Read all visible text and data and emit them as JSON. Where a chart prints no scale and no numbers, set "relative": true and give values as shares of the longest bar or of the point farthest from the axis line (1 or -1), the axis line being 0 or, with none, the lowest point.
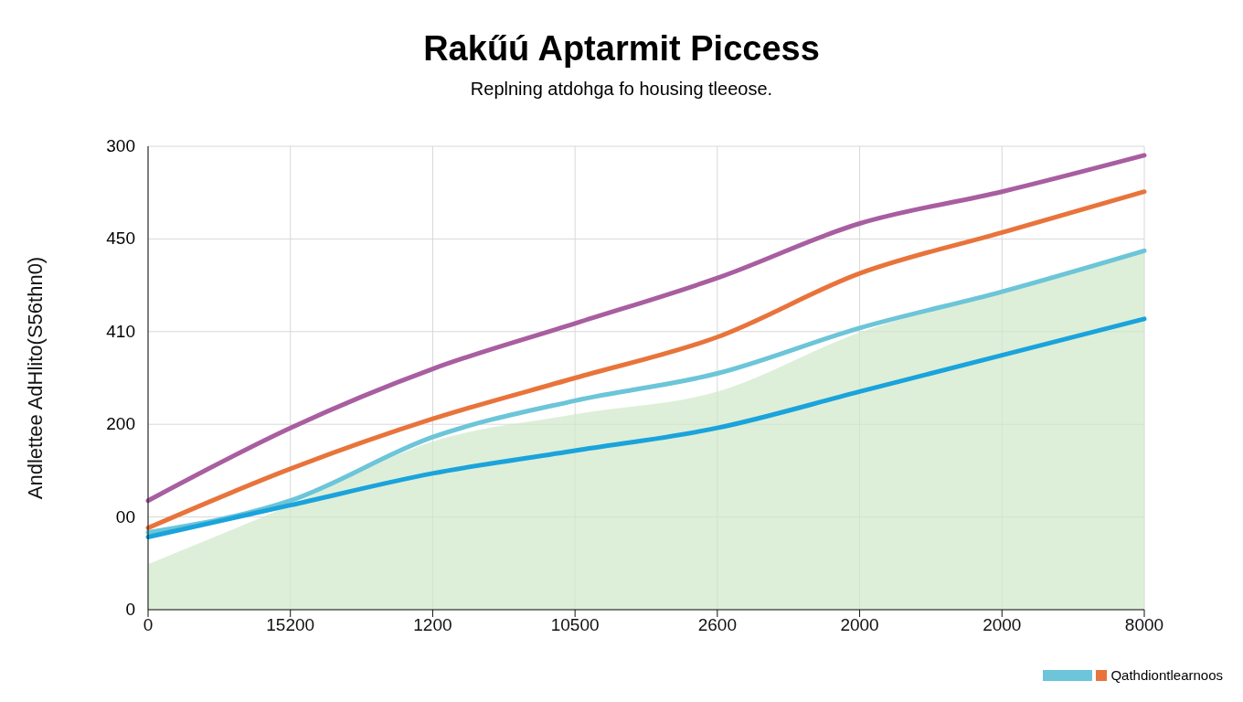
{
  "chart_data": {
    "type": "line",
    "title": "Rakűú Aptarmit Piccess",
    "subtitle": "Replning atdohga fo housing tleeose.",
    "ylabel": "Andlettee AdHlito(S56thn0)",
    "categories": [
      "0",
      "15200",
      "1200",
      "10500",
      "2600",
      "2000",
      "2000",
      "8000"
    ],
    "relative": true,
    "annotations": [
      "0",
      "00",
      "200",
      "410",
      "450",
      "300"
    ],
    "grid": true,
    "legend": "bottom right",
    "line_style": "solid",
    "series": [
      {
        "type": "area",
        "color": "#cfe8c8",
        "values": [
          0.1,
          0.23,
          0.37,
          0.43,
          0.48,
          0.61,
          0.7,
          0.79
        ]
      },
      {
        "color": "#a85ea0",
        "values": [
          0.24,
          0.4,
          0.53,
          0.63,
          0.73,
          0.85,
          0.92,
          1
        ]
      },
      {
        "color": "#e8743b",
        "values": [
          0.18,
          0.31,
          0.42,
          0.51,
          0.6,
          0.74,
          0.83,
          0.92
        ]
      },
      {
        "name": "Qathdiontlearnoos",
        "color": "#6cc5d8",
        "values": [
          0.17,
          0.24,
          0.38,
          0.46,
          0.52,
          0.62,
          0.7,
          0.79
        ]
      },
      {
        "color": "#1aa3dc",
        "values": [
          0.16,
          0.23,
          0.3,
          0.35,
          0.4,
          0.48,
          0.56,
          0.64
        ]
      }
    ]
  }
}
